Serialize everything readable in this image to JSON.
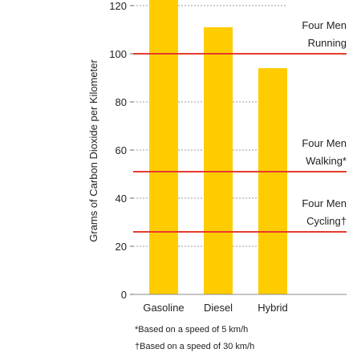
{
  "chart_data": {
    "type": "bar",
    "title": "",
    "xlabel": "",
    "ylabel": "Grams of Carbon Dioxide per Kilometer",
    "ylim": [
      0,
      125
    ],
    "yticks": [
      0,
      20,
      40,
      60,
      80,
      100,
      120
    ],
    "ytick_labels": [
      "0",
      "20",
      "40",
      "60",
      "80",
      "100",
      "120"
    ],
    "grid": "dashed horizontal",
    "categories": [
      "Gasoline",
      "Diesel",
      "Hybrid"
    ],
    "values": [
      123,
      111,
      94
    ],
    "bar_color": "#FFCC00",
    "reference_lines": [
      {
        "value": 100,
        "label_line1": "Four Men",
        "label_line2": "Running",
        "color": "#E53B2C"
      },
      {
        "value": 51,
        "label_line1": "Four Men",
        "label_line2": "Walking*",
        "color": "#E53B2C"
      },
      {
        "value": 26,
        "label_line1": "Four Men",
        "label_line2": "Cycling†",
        "color": "#E53B2C"
      }
    ]
  },
  "footnotes": [
    "*Based on a speed of 5 km/h",
    "†Based on a speed of 30 km/h"
  ]
}
